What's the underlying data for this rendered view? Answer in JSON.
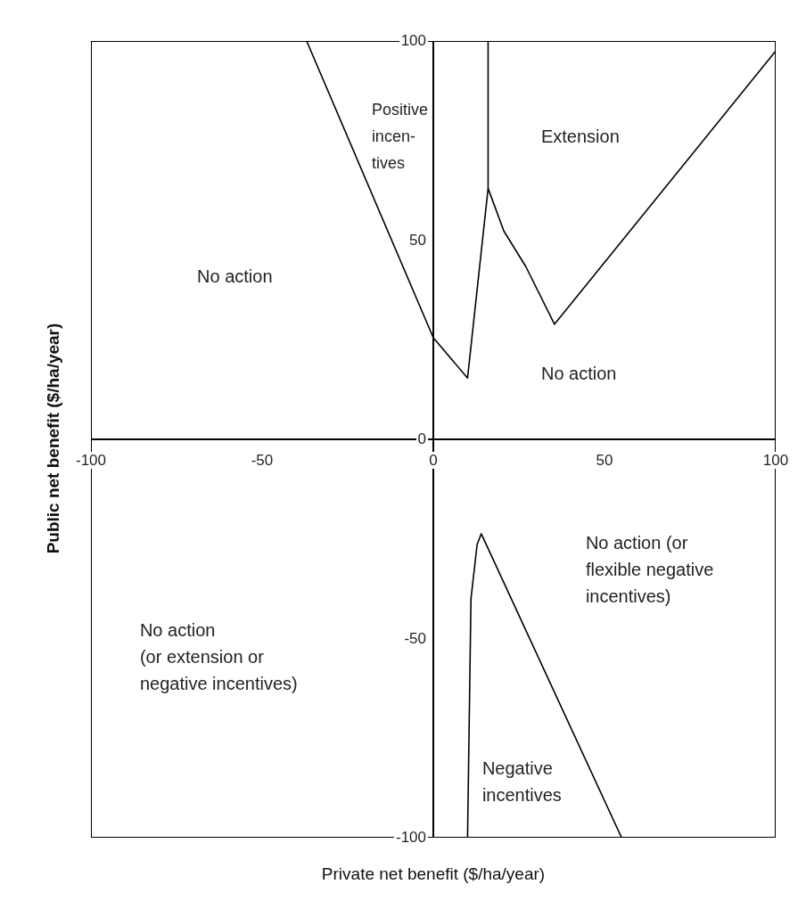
{
  "chart_data": {
    "type": "line",
    "xlabel": "Private net benefit ($/ha/year)",
    "ylabel": "Public net benefit ($/ha/year)",
    "xlim": [
      -100,
      100
    ],
    "ylim": [
      -100,
      100
    ],
    "xticks": [
      -100,
      -50,
      0,
      50,
      100
    ],
    "yticks": [
      -100,
      -50,
      0,
      50,
      100
    ],
    "marker": "none",
    "line_style": "solid",
    "series": [
      {
        "color": "#000000",
        "x": [
          -37,
          0,
          10,
          16,
          20.6,
          27,
          35.4,
          100
        ],
        "values": [
          100,
          25.5,
          15.4,
          63,
          52.3,
          43.4,
          28.9,
          97.5
        ]
      },
      {
        "color": "#000000",
        "x": [
          16,
          16
        ],
        "values": [
          63,
          100
        ]
      },
      {
        "color": "#000000",
        "x": [
          10,
          11,
          12.8,
          14,
          55
        ],
        "values": [
          -100,
          -40,
          -26.4,
          -23.7,
          -100
        ]
      }
    ],
    "annotations": [
      "No action",
      "Positive\nincen-\ntives",
      "Extension",
      "No action",
      "No action (or\nflexible negative\nincentives)",
      "No action\n(or extension or\nnegative incentives)",
      "Negative\nincentives"
    ]
  }
}
